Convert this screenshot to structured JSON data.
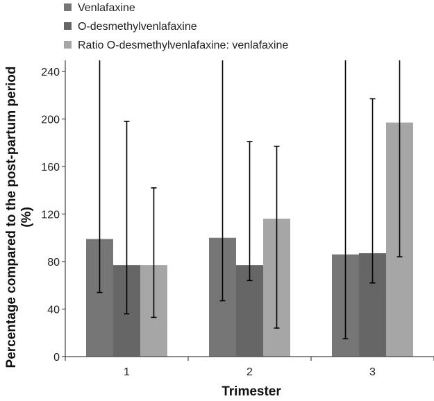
{
  "chart_data": {
    "type": "bar",
    "title": "",
    "xlabel": "Trimester",
    "ylabel": "Percentage compared to the post-partum period (%)",
    "ylabel_lines": [
      "Percentage compared to the post-partum period",
      "(%)"
    ],
    "categories": [
      "1",
      "2",
      "3"
    ],
    "ylim": [
      0,
      240
    ],
    "yticks": [
      0,
      40,
      80,
      120,
      160,
      200,
      240
    ],
    "grid": false,
    "legend_position": "top-left",
    "series": [
      {
        "name": "Venlafaxine",
        "color": "#767676",
        "values": [
          99,
          100,
          86
        ],
        "error_low": [
          54,
          47,
          15
        ],
        "error_high": [
          260,
          260,
          260
        ]
      },
      {
        "name": "O-desmethylvenlafaxine",
        "color": "#666666",
        "values": [
          77,
          77,
          87
        ],
        "error_low": [
          36,
          64,
          62
        ],
        "error_high": [
          198,
          181,
          217
        ]
      },
      {
        "name": "Ratio O-desmethylvenlafaxine: venlafaxine",
        "color": "#a6a6a6",
        "values": [
          77,
          116,
          197
        ],
        "error_low": [
          33,
          24,
          84
        ],
        "error_high": [
          142,
          177,
          260
        ]
      }
    ]
  }
}
